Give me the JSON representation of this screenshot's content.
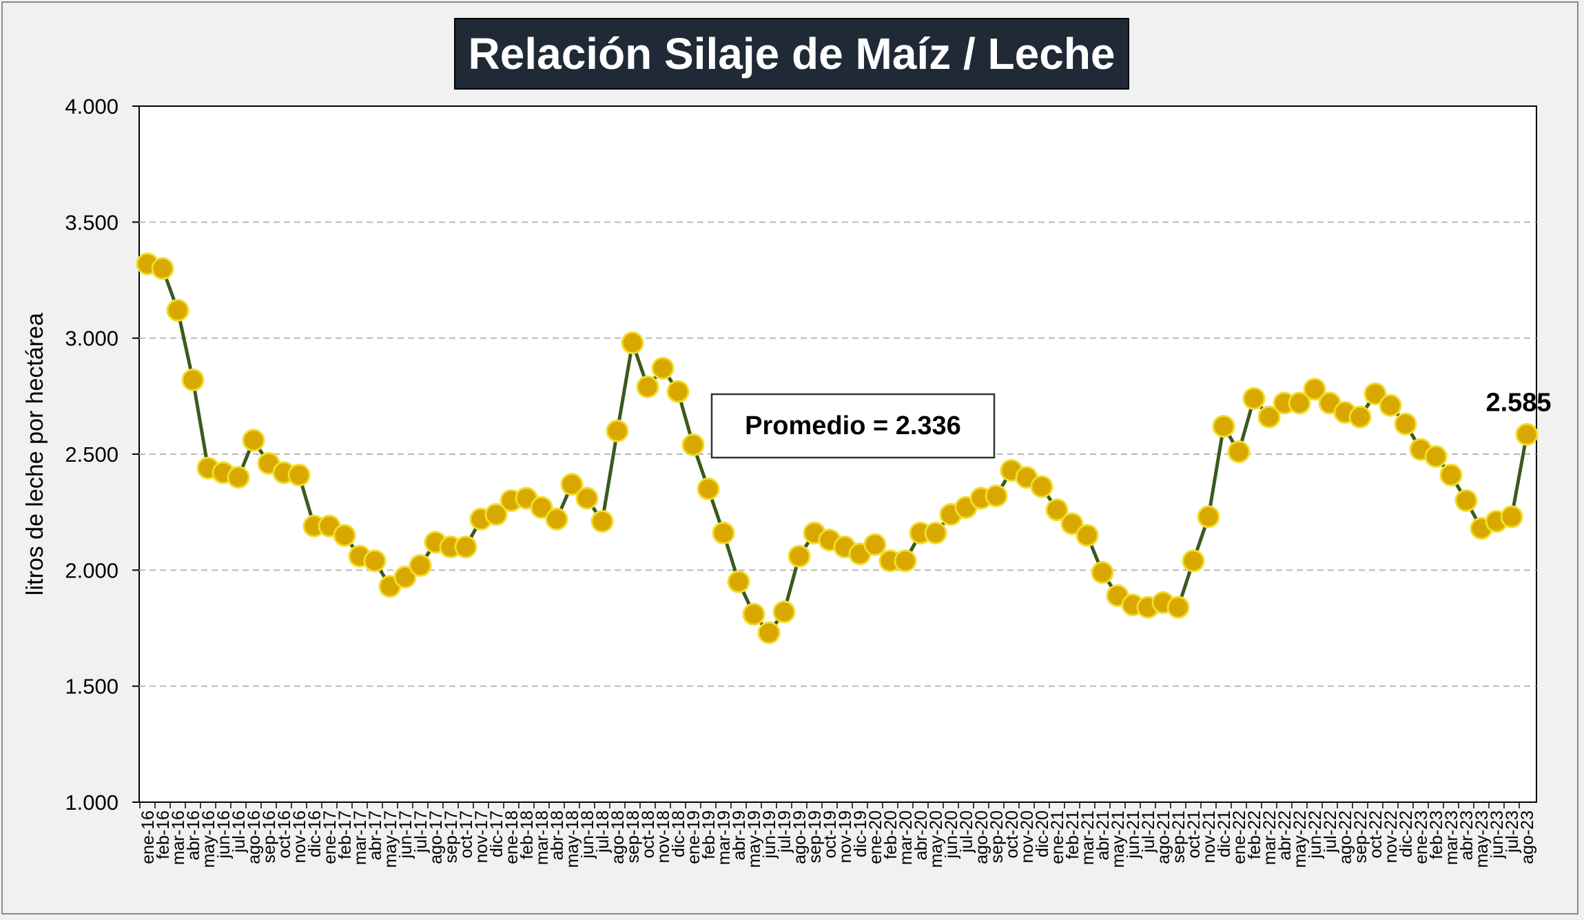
{
  "chart_data": {
    "type": "line",
    "title": "Relación Silaje de Maíz / Leche",
    "ylabel": "litros de leche por hectárea",
    "xlabel": "",
    "ylim": [
      1000,
      4000
    ],
    "yticks": [
      1000,
      1500,
      2000,
      2500,
      3000,
      3500,
      4000
    ],
    "ytick_labels": [
      "1.000",
      "1.500",
      "2.000",
      "2.500",
      "3.000",
      "3.500",
      "4.000"
    ],
    "grid": "horizontal dashed",
    "annotation": "Promedio = 2.336",
    "last_value_label": "2.585",
    "colors": {
      "line": "#3a5a1e",
      "marker": "#d9a800",
      "marker_edge": "#f2dc2a",
      "title_bg": "#1f2a36"
    },
    "categories": [
      "ene-16",
      "feb-16",
      "mar-16",
      "abr-16",
      "may-16",
      "jun-16",
      "jul-16",
      "ago-16",
      "sep-16",
      "oct-16",
      "nov-16",
      "dic-16",
      "ene-17",
      "feb-17",
      "mar-17",
      "abr-17",
      "may-17",
      "jun-17",
      "jul-17",
      "ago-17",
      "sep-17",
      "oct-17",
      "nov-17",
      "dic-17",
      "ene-18",
      "feb-18",
      "mar-18",
      "abr-18",
      "may-18",
      "jun-18",
      "jul-18",
      "ago-18",
      "sep-18",
      "oct-18",
      "nov-18",
      "dic-18",
      "ene-19",
      "feb-19",
      "mar-19",
      "abr-19",
      "may-19",
      "jun-19",
      "jul-19",
      "ago-19",
      "sep-19",
      "oct-19",
      "nov-19",
      "dic-19",
      "ene-20",
      "feb-20",
      "mar-20",
      "abr-20",
      "may-20",
      "jun-20",
      "jul-20",
      "ago-20",
      "sep-20",
      "oct-20",
      "nov-20",
      "dic-20",
      "ene-21",
      "feb-21",
      "mar-21",
      "abr-21",
      "may-21",
      "jun-21",
      "jul-21",
      "ago-21",
      "sep-21",
      "oct-21",
      "nov-21",
      "dic-21",
      "ene-22",
      "feb-22",
      "mar-22",
      "abr-22",
      "may-22",
      "jun-22",
      "jul-22",
      "ago-22",
      "sep-22",
      "oct-22",
      "nov-22",
      "dic-22",
      "ene-23",
      "feb-23",
      "mar-23",
      "abr-23",
      "may-23",
      "jun-23",
      "jul-23",
      "ago-23"
    ],
    "values": [
      3320,
      3300,
      3120,
      2820,
      2440,
      2420,
      2400,
      2560,
      2460,
      2420,
      2410,
      2190,
      2190,
      2150,
      2060,
      2040,
      1930,
      1970,
      2020,
      2120,
      2100,
      2100,
      2220,
      2240,
      2300,
      2310,
      2270,
      2220,
      2370,
      2310,
      2210,
      2600,
      2980,
      2790,
      2870,
      2770,
      2540,
      2350,
      2160,
      1950,
      1810,
      1730,
      1820,
      2060,
      2160,
      2130,
      2100,
      2070,
      2110,
      2040,
      2040,
      2160,
      2160,
      2240,
      2270,
      2310,
      2320,
      2430,
      2400,
      2360,
      2260,
      2200,
      2150,
      1990,
      1890,
      1850,
      1840,
      1860,
      1840,
      2040,
      2230,
      2620,
      2510,
      2740,
      2660,
      2720,
      2720,
      2780,
      2720,
      2680,
      2660,
      2760,
      2710,
      2630,
      2520,
      2490,
      2410,
      2300,
      2180,
      2210,
      2230,
      2585
    ]
  }
}
